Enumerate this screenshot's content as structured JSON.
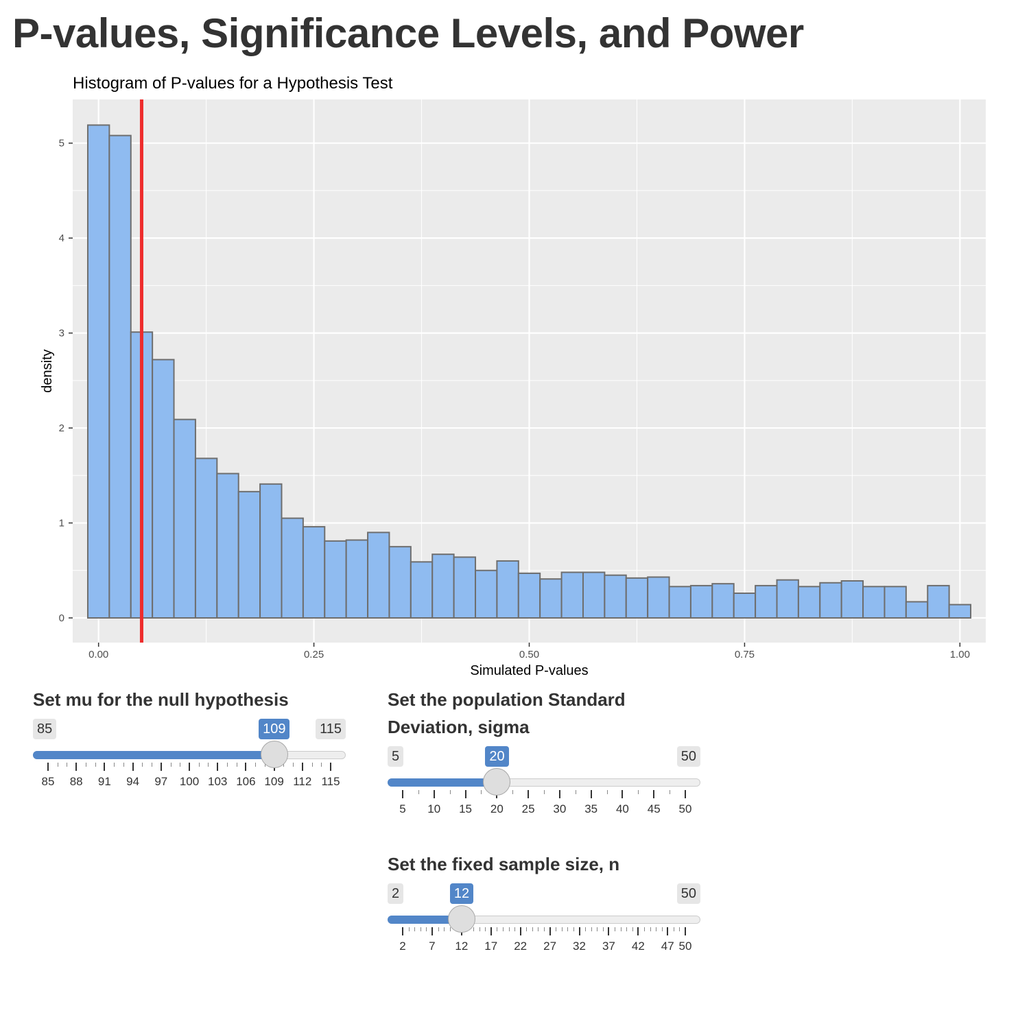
{
  "page": {
    "title": "P-values, Significance Levels, and Power"
  },
  "chart_data": {
    "type": "bar",
    "title": "Histogram of P-values for a Hypothesis Test",
    "xlabel": "Simulated P-values",
    "ylabel": "density",
    "xlim": [
      -0.03,
      1.03
    ],
    "ylim": [
      -0.26,
      5.46
    ],
    "x_ticks": [
      0.0,
      0.25,
      0.5,
      0.75,
      1.0
    ],
    "x_tick_labels": [
      "0.00",
      "0.25",
      "0.50",
      "0.75",
      "1.00"
    ],
    "y_ticks": [
      0,
      1,
      2,
      3,
      4,
      5
    ],
    "y_tick_labels": [
      "0",
      "1",
      "2",
      "3",
      "4",
      "5"
    ],
    "bin_width": 0.025,
    "bin_start": -0.0125,
    "values": [
      5.19,
      5.08,
      3.01,
      2.72,
      2.09,
      1.68,
      1.52,
      1.33,
      1.41,
      1.05,
      0.96,
      0.81,
      0.82,
      0.9,
      0.75,
      0.59,
      0.67,
      0.64,
      0.5,
      0.6,
      0.47,
      0.41,
      0.48,
      0.48,
      0.45,
      0.42,
      0.43,
      0.33,
      0.34,
      0.36,
      0.26,
      0.34,
      0.4,
      0.33,
      0.37,
      0.39,
      0.33,
      0.33,
      0.17,
      0.34,
      0.14
    ],
    "vline": {
      "x": 0.05,
      "color": "#ee2c2c"
    },
    "grid": true,
    "colors": {
      "bar_fill": "#8fbbf0",
      "bar_border": "#6e6e6e",
      "panel": "#ebebeb",
      "grid": "#ffffff"
    }
  },
  "sliders": {
    "mu": {
      "label": "Set mu for the null hypothesis",
      "min": 85,
      "max": 115,
      "value": 109,
      "min_label": "85",
      "max_label": "115",
      "value_label": "109",
      "major_ticks": [
        85,
        88,
        91,
        94,
        97,
        100,
        103,
        106,
        109,
        112,
        115
      ],
      "minor_step": 1
    },
    "sigma": {
      "label_line1": "Set the population Standard",
      "label_line2": "Deviation, sigma",
      "min": 5,
      "max": 50,
      "value": 20,
      "min_label": "5",
      "max_label": "50",
      "value_label": "20",
      "major_ticks": [
        5,
        10,
        15,
        20,
        25,
        30,
        35,
        40,
        45,
        50
      ],
      "minor_step": 2.5
    },
    "n": {
      "label": "Set the fixed sample size, n",
      "min": 2,
      "max": 50,
      "value": 12,
      "min_label": "2",
      "max_label": "50",
      "value_label": "12",
      "major_ticks": [
        2,
        7,
        12,
        17,
        22,
        27,
        32,
        37,
        42,
        47,
        50
      ],
      "minor_step": 1
    }
  },
  "colors": {
    "accent": "#5286c8",
    "text": "#333333"
  }
}
